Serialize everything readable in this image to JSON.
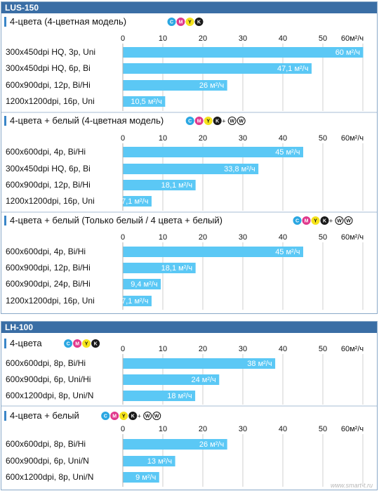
{
  "colors": {
    "header_bg": "#3a6ea5",
    "bar": "#5bc8f5",
    "frame": "#8aa9c8",
    "grid": "#b0b0b0",
    "accent_bar": "#3a86c8",
    "ink_c": "#2aa7e2",
    "ink_m": "#e0388c",
    "ink_y": "#f5e31b",
    "ink_k": "#1a1a1a"
  },
  "ink_letters": {
    "c": "C",
    "m": "M",
    "y": "Y",
    "k": "K",
    "w": "W",
    "plus": "+"
  },
  "watermark": "www.smart-t.ru",
  "chart_data": [
    {
      "type": "bar",
      "orientation": "horizontal",
      "title": "LUS-150",
      "unit": "м²/ч",
      "xlim": [
        0,
        60
      ],
      "ticks": [
        "0",
        "10",
        "20",
        "30",
        "40",
        "50",
        "60м²/ч"
      ],
      "panels": [
        {
          "title": "4-цвета (4-цветная модель)",
          "inks": [
            "C",
            "M",
            "Y",
            "K"
          ],
          "categories": [
            "300x450dpi HQ, 3p, Uni",
            "300x450dpi HQ, 6p, Bi",
            "600x900dpi, 12p, Bi/Hi",
            "1200x1200dpi, 16p, Uni"
          ],
          "values": [
            60,
            47.1,
            26,
            10.5
          ],
          "value_labels": [
            "60 м²/ч",
            "47,1 м²/ч",
            "26 м²/ч",
            "10,5 м²/ч"
          ]
        },
        {
          "title": "4-цвета + белый (4-цветная модель)",
          "inks": [
            "C",
            "M",
            "Y",
            "K",
            "+",
            "W",
            "W"
          ],
          "categories": [
            "600x600dpi, 4p, Bi/Hi",
            "300x450dpi HQ, 6p, Bi",
            "600x900dpi, 12p, Bi/Hi",
            "1200x1200dpi, 16p, Uni"
          ],
          "values": [
            45,
            33.8,
            18.1,
            7.1
          ],
          "value_labels": [
            "45 м²/ч",
            "33,8 м²/ч",
            "18,1 м²/ч",
            "7,1 м²/ч"
          ]
        },
        {
          "title": "4-цвета + белый (Только белый / 4 цвета + белый)",
          "inks": [
            "C",
            "M",
            "Y",
            "K",
            "+",
            "W",
            "W"
          ],
          "categories": [
            "600x600dpi, 4p, Bi/Hi",
            "600x900dpi, 12p, Bi/Hi",
            "600x900dpi, 24p, Bi/Hi",
            "1200x1200dpi, 16p, Uni"
          ],
          "values": [
            45,
            18.1,
            9.4,
            7.1
          ],
          "value_labels": [
            "45 м²/ч",
            "18,1 м²/ч",
            "9,4 м²/ч",
            "7,1 м²/ч"
          ]
        }
      ]
    },
    {
      "type": "bar",
      "orientation": "horizontal",
      "title": "LH-100",
      "unit": "м²/ч",
      "xlim": [
        0,
        60
      ],
      "ticks": [
        "0",
        "10",
        "20",
        "30",
        "40",
        "50",
        "60м²/ч"
      ],
      "panels": [
        {
          "title": "4-цвета",
          "inks": [
            "C",
            "M",
            "Y",
            "K"
          ],
          "categories": [
            "600x600dpi, 8p, Bi/Hi",
            "600x900dpi, 6p, Uni/Hi",
            "600x1200dpi, 8p, Uni/N"
          ],
          "values": [
            38,
            24,
            18
          ],
          "value_labels": [
            "38 м²/ч",
            "24 м²/ч",
            "18 м²/ч"
          ]
        },
        {
          "title": "4-цвета + белый",
          "inks": [
            "C",
            "M",
            "Y",
            "K",
            "+",
            "W",
            "W"
          ],
          "categories": [
            "600x600dpi, 8p, Bi/Hi",
            "600x900dpi, 6p, Uni/N",
            "600x1200dpi, 8p, Uni/N"
          ],
          "values": [
            26,
            13,
            9
          ],
          "value_labels": [
            "26 м²/ч",
            "13 м²/ч",
            "9 м²/ч"
          ]
        }
      ]
    }
  ]
}
